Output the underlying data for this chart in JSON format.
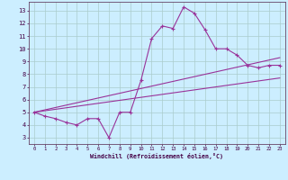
{
  "xlabel": "Windchill (Refroidissement éolien,°C)",
  "bg_color": "#cceeff",
  "grid_color": "#aacccc",
  "line_color": "#993399",
  "xlim": [
    -0.5,
    23.5
  ],
  "ylim": [
    2.5,
    13.7
  ],
  "xticks": [
    0,
    1,
    2,
    3,
    4,
    5,
    6,
    7,
    8,
    9,
    10,
    11,
    12,
    13,
    14,
    15,
    16,
    17,
    18,
    19,
    20,
    21,
    22,
    23
  ],
  "yticks": [
    3,
    4,
    5,
    6,
    7,
    8,
    9,
    10,
    11,
    12,
    13
  ],
  "line1_x": [
    0,
    1,
    2,
    3,
    4,
    5,
    6,
    7,
    8,
    9,
    10,
    11,
    12,
    13,
    14,
    15,
    16,
    17,
    18,
    19,
    20,
    21,
    22,
    23
  ],
  "line1_y": [
    5.0,
    4.7,
    4.5,
    4.2,
    4.0,
    4.5,
    4.5,
    3.0,
    5.0,
    5.0,
    7.5,
    10.8,
    11.8,
    11.6,
    13.3,
    12.8,
    11.5,
    10.0,
    10.0,
    9.5,
    8.7,
    8.5,
    8.7,
    8.7
  ],
  "line2_x": [
    0,
    23
  ],
  "line2_y": [
    5.0,
    7.7
  ],
  "line3_x": [
    0,
    23
  ],
  "line3_y": [
    5.0,
    9.3
  ]
}
